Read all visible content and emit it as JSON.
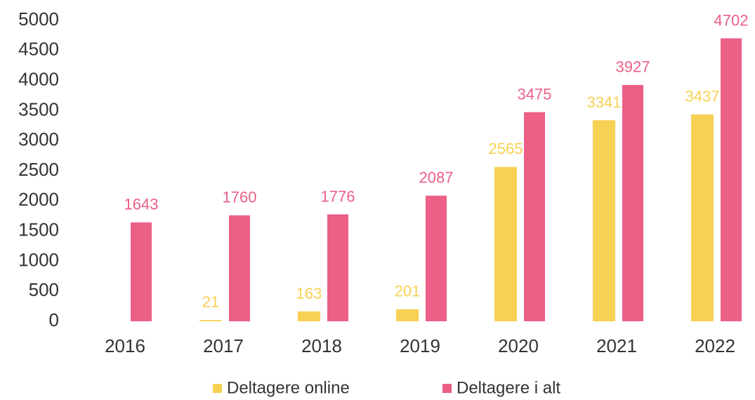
{
  "chart_data": {
    "type": "bar",
    "categories": [
      "2016",
      "2017",
      "2018",
      "2019",
      "2020",
      "2021",
      "2022"
    ],
    "series": [
      {
        "name": "Deltagere online",
        "color": "#f7d154",
        "values": [
          null,
          21,
          163,
          201,
          2565,
          3341,
          3437
        ]
      },
      {
        "name": "Deltagere i alt",
        "color": "#ec5f87",
        "values": [
          1643,
          1760,
          1776,
          2087,
          3475,
          3927,
          4702
        ]
      }
    ],
    "ylim": [
      0,
      5000
    ],
    "yticks": [
      0,
      500,
      1000,
      1500,
      2000,
      2500,
      3000,
      3500,
      4000,
      4500,
      5000
    ],
    "legend": "bottom"
  }
}
